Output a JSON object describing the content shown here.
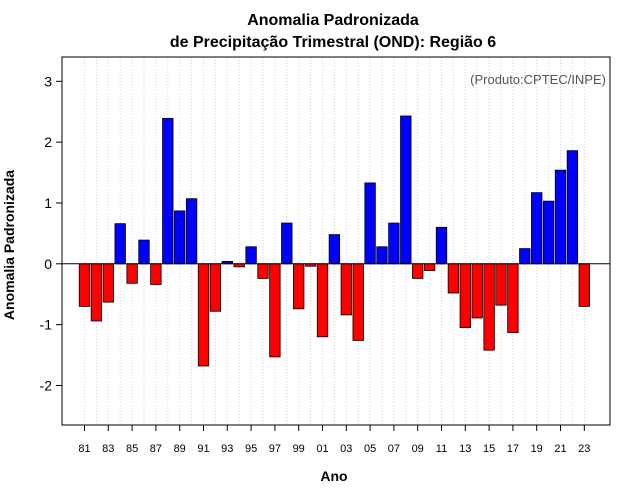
{
  "chart_data": {
    "type": "bar",
    "title_line1": "Anomalia Padronizada",
    "title_line2": "de Precipitação Trimestral (OND): Região 6",
    "xlabel": "Ano",
    "ylabel": "Anomalia Padronizada",
    "credit": "(Produto:CPTEC/INPE)",
    "ylim": [
      -2.65,
      3.4
    ],
    "yticks": [
      -2,
      -1,
      0,
      1,
      2,
      3
    ],
    "yticklabels": [
      "-2",
      "-1",
      "0",
      "1",
      "2",
      "3"
    ],
    "xticklabels": [
      "81",
      "83",
      "85",
      "87",
      "89",
      "91",
      "93",
      "95",
      "97",
      "99",
      "01",
      "03",
      "05",
      "07",
      "09",
      "11",
      "13",
      "15",
      "17",
      "19",
      "21",
      "23"
    ],
    "categories": [
      "1981",
      "1982",
      "1983",
      "1984",
      "1985",
      "1986",
      "1987",
      "1988",
      "1989",
      "1990",
      "1991",
      "1992",
      "1993",
      "1994",
      "1995",
      "1996",
      "1997",
      "1998",
      "1999",
      "2000",
      "2001",
      "2002",
      "2003",
      "2004",
      "2005",
      "2006",
      "2007",
      "2008",
      "2009",
      "2010",
      "2011",
      "2012",
      "2013",
      "2014",
      "2015",
      "2016",
      "2017",
      "2018",
      "2019",
      "2020",
      "2021",
      "2022",
      "2023"
    ],
    "values": [
      -0.7,
      -0.94,
      -0.63,
      0.66,
      -0.32,
      0.39,
      -0.34,
      2.39,
      0.87,
      1.07,
      -1.68,
      -0.78,
      0.04,
      -0.05,
      0.28,
      -0.24,
      -1.53,
      0.67,
      -0.74,
      -0.04,
      -1.2,
      0.48,
      -0.84,
      -1.26,
      1.33,
      0.28,
      0.67,
      2.43,
      -0.24,
      -0.11,
      0.6,
      -0.48,
      -1.05,
      -0.89,
      -1.42,
      -0.68,
      -1.13,
      0.25,
      1.17,
      1.03,
      1.54,
      1.86,
      -0.7
    ],
    "colors": {
      "positive": "#0000ff",
      "negative": "#ff0000"
    },
    "grid": true
  }
}
